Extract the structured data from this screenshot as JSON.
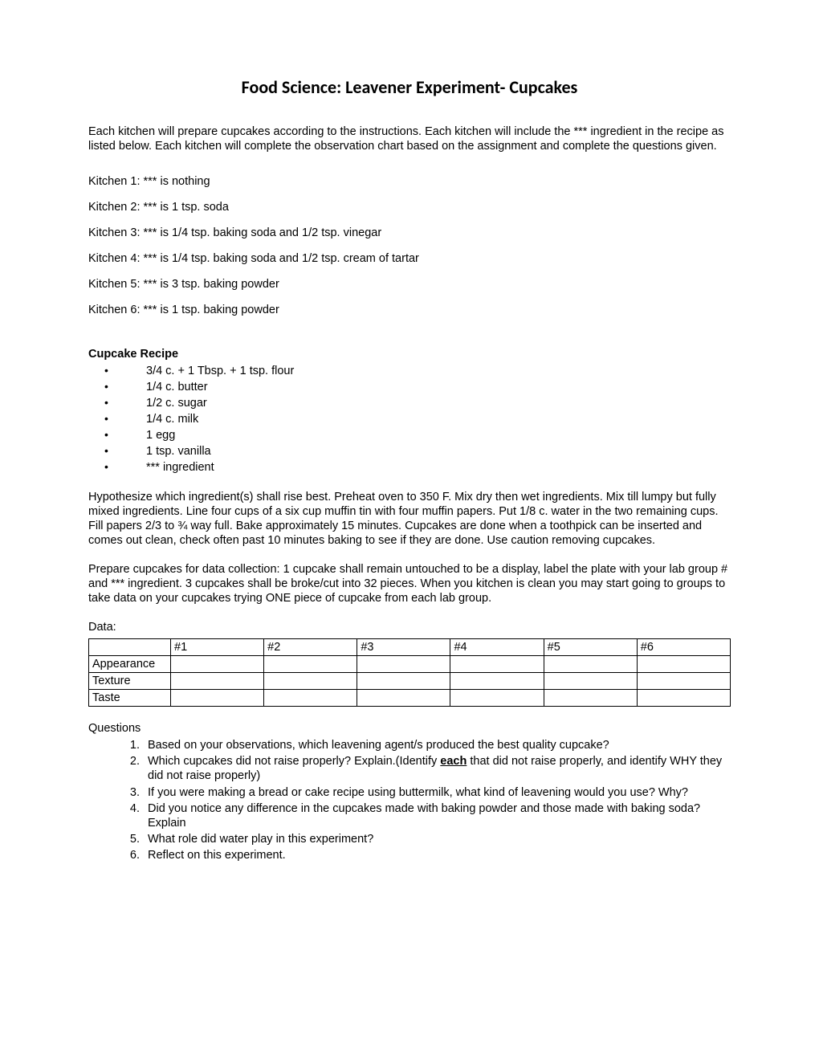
{
  "title": "Food Science:  Leavener Experiment- Cupcakes",
  "intro": "Each kitchen will prepare cupcakes according to the instructions.  Each kitchen will include the *** ingredient in the recipe as listed below.  Each kitchen will complete the observation chart based on the assignment and complete the questions given.",
  "kitchens": [
    "Kitchen 1:  *** is nothing",
    "Kitchen 2:  *** is 1 tsp. soda",
    "Kitchen 3:  *** is 1/4 tsp. baking soda and 1/2 tsp. vinegar",
    "Kitchen 4:  *** is 1/4 tsp. baking soda and 1/2 tsp. cream of tartar",
    "Kitchen 5:  *** is 3 tsp. baking powder",
    "Kitchen 6:  *** is 1 tsp. baking powder"
  ],
  "recipe_heading": "Cupcake Recipe",
  "recipe_items": [
    "3/4 c. + 1 Tbsp. + 1 tsp. flour",
    "1/4 c. butter",
    "1/2 c. sugar",
    "1/4 c. milk",
    "1 egg",
    "1 tsp. vanilla",
    "*** ingredient"
  ],
  "instructions": "Hypothesize which ingredient(s) shall rise best. Preheat oven to 350 F.  Mix dry then wet ingredients. Mix till lumpy but fully mixed ingredients.  Line four cups of a six cup muffin tin with four muffin papers.  Put 1/8 c. water in the two remaining cups. Fill papers 2/3 to ¾ way full. Bake approximately 15 minutes.  Cupcakes are done when a toothpick can be inserted and comes out clean, check often past 10 minutes baking to see if they are done.  Use caution removing cupcakes.",
  "prep_instructions": "Prepare cupcakes for data collection:  1 cupcake shall remain untouched to be a display, label the plate with your lab group # and *** ingredient.  3 cupcakes shall be broke/cut into 32 pieces.  When you kitchen is clean you may start going to groups to take data on your cupcakes trying ONE piece of cupcake from each lab group.",
  "data_label": "Data:",
  "table": {
    "headers": [
      "",
      "#1",
      "#2",
      "#3",
      "#4",
      "#5",
      "#6"
    ],
    "rows": [
      "Appearance",
      "Texture",
      "Taste"
    ]
  },
  "questions_heading": "Questions",
  "questions": [
    {
      "text": "Based on your observations, which leavening agent/s produced the best quality cupcake?"
    },
    {
      "text_before": " Which cupcakes did not raise properly?  Explain.(Identify ",
      "emphasis": "each",
      "text_after": " that did not raise properly, and identify WHY they did not raise properly)"
    },
    {
      "text": "If you were making a bread or cake recipe using buttermilk, what kind of leavening would you use?  Why?"
    },
    {
      "text": "Did you notice any difference in the cupcakes made with baking powder and those made with baking soda?  Explain"
    },
    {
      "text": "What role did water play in this experiment?"
    },
    {
      "text": "Reflect on this experiment."
    }
  ]
}
